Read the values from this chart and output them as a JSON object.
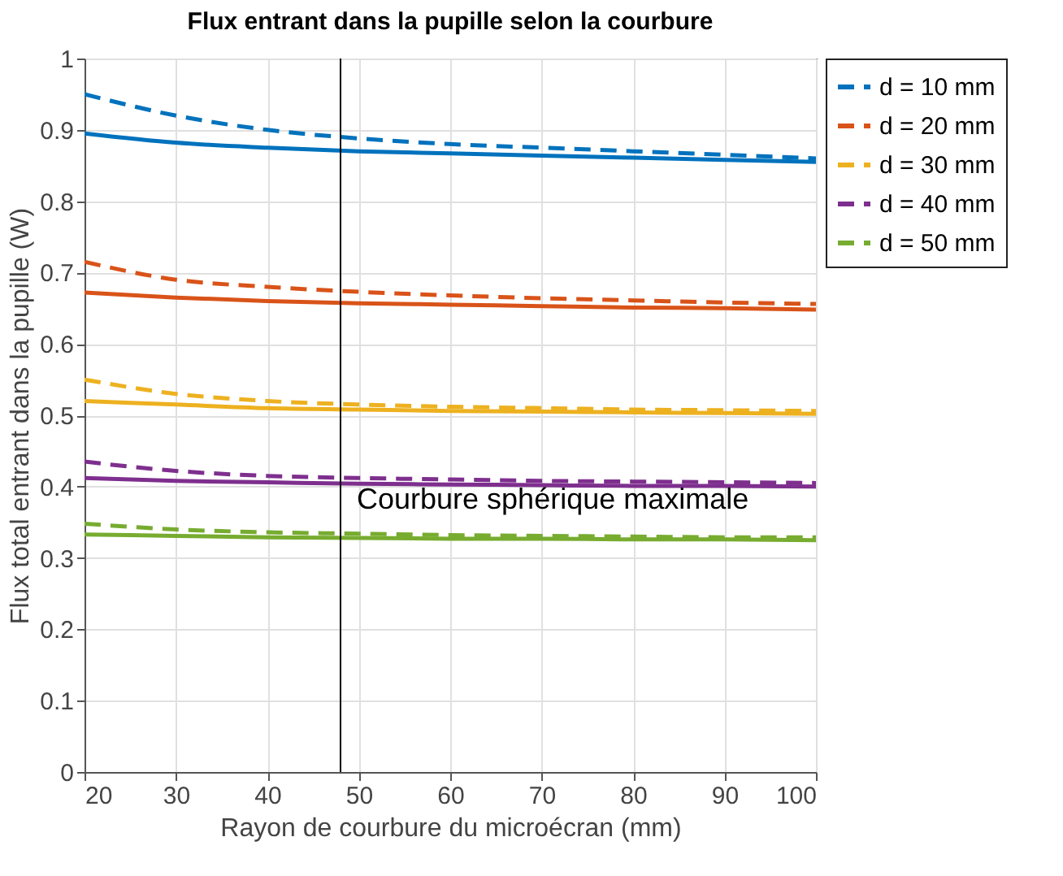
{
  "chart_data": {
    "type": "line",
    "title": "Flux entrant dans la pupille selon la courbure",
    "xlabel": "Rayon de courbure du microécran (mm)",
    "ylabel": "Flux total entrant dans la pupille (W)",
    "x": [
      20,
      30,
      40,
      50,
      60,
      70,
      80,
      90,
      100
    ],
    "series": [
      {
        "name": "d = 10 mm",
        "color": "#0072bd",
        "line_style": "dashed",
        "values": [
          0.95,
          0.92,
          0.9,
          0.888,
          0.88,
          0.875,
          0.87,
          0.865,
          0.86
        ]
      },
      {
        "name": "d = 20 mm",
        "color": "#d95319",
        "line_style": "dashed",
        "values": [
          0.715,
          0.69,
          0.68,
          0.673,
          0.668,
          0.664,
          0.661,
          0.658,
          0.656
        ]
      },
      {
        "name": "d = 30 mm",
        "color": "#edb120",
        "line_style": "dashed",
        "values": [
          0.55,
          0.53,
          0.52,
          0.515,
          0.512,
          0.51,
          0.508,
          0.507,
          0.506
        ]
      },
      {
        "name": "d = 40 mm",
        "color": "#7e2f8e",
        "line_style": "dashed",
        "values": [
          0.435,
          0.422,
          0.415,
          0.412,
          0.41,
          0.408,
          0.407,
          0.406,
          0.405
        ]
      },
      {
        "name": "d = 50 mm",
        "color": "#77ac30",
        "line_style": "dashed",
        "values": [
          0.348,
          0.34,
          0.336,
          0.334,
          0.332,
          0.331,
          0.33,
          0.329,
          0.329
        ]
      },
      {
        "color": "#0072bd",
        "line_style": "solid",
        "values": [
          0.895,
          0.882,
          0.875,
          0.87,
          0.867,
          0.864,
          0.861,
          0.858,
          0.855
        ]
      },
      {
        "color": "#d95319",
        "line_style": "solid",
        "values": [
          0.672,
          0.665,
          0.66,
          0.657,
          0.655,
          0.653,
          0.651,
          0.65,
          0.648
        ]
      },
      {
        "color": "#edb120",
        "line_style": "solid",
        "values": [
          0.52,
          0.515,
          0.51,
          0.508,
          0.506,
          0.505,
          0.504,
          0.503,
          0.502
        ]
      },
      {
        "color": "#7e2f8e",
        "line_style": "solid",
        "values": [
          0.412,
          0.408,
          0.406,
          0.404,
          0.403,
          0.402,
          0.401,
          0.401,
          0.4
        ]
      },
      {
        "color": "#77ac30",
        "line_style": "solid",
        "values": [
          0.333,
          0.331,
          0.329,
          0.328,
          0.327,
          0.327,
          0.326,
          0.326,
          0.325
        ]
      }
    ],
    "xlim": [
      20,
      100
    ],
    "xticks": [
      20,
      30,
      40,
      50,
      60,
      70,
      80,
      90,
      100
    ],
    "ylim": [
      0,
      1
    ],
    "yticks": [
      0,
      0.1,
      0.2,
      0.3,
      0.4,
      0.5,
      0.6,
      0.7,
      0.8,
      0.9,
      1
    ],
    "ref_lines": [
      {
        "axis": "x",
        "value": 48,
        "label": "Courbure sphérique maximale",
        "color": "#000000"
      }
    ],
    "grid": true,
    "legend": "top right"
  }
}
